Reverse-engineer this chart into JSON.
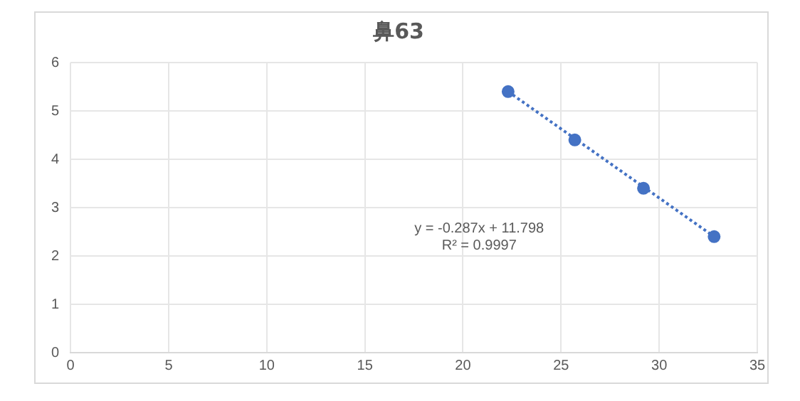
{
  "chart_data": {
    "type": "scatter",
    "title": "鼻63",
    "x": [
      22.3,
      25.7,
      29.2,
      32.8
    ],
    "series": [
      {
        "color": "#4472c4",
        "values": [
          5.4,
          4.4,
          3.4,
          2.4
        ],
        "marker": "circle"
      },
      {
        "type": "line",
        "color": "#4472c4",
        "x": [
          22.3,
          32.8
        ],
        "values": [
          5.4,
          2.4
        ],
        "marker": "none",
        "line_style": "dotted"
      }
    ],
    "xlim": [
      0,
      35
    ],
    "xticks": [
      0,
      5,
      10,
      15,
      20,
      25,
      30,
      35
    ],
    "ylim": [
      0,
      6
    ],
    "yticks": [
      0,
      1,
      2,
      3,
      4,
      5,
      6
    ],
    "grid": true,
    "legend": false,
    "annotations": [
      "y = -0.287x + 11.798",
      "R² = 0.9997"
    ]
  }
}
